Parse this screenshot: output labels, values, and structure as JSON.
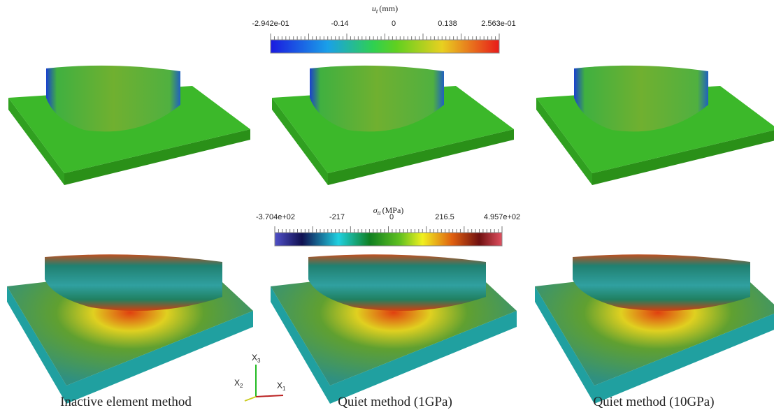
{
  "colorbars": [
    {
      "symbol": "u",
      "subscript": "t",
      "unit": "(mm)",
      "tick_labels": [
        "-2.942e-01",
        "-0.14",
        "0",
        "0.138",
        "2.563e-01"
      ]
    },
    {
      "symbol": "σ",
      "subscript": "tt",
      "unit": "(MPa)",
      "tick_labels": [
        "-3.704e+02",
        "-217",
        "0",
        "216.5",
        "4.957e+02"
      ]
    }
  ],
  "captions": [
    "Inactive element method",
    "Quiet method (1GPa)",
    "Quiet method (10GPa)"
  ],
  "axes_triad": [
    {
      "letter": "X",
      "index": "3"
    },
    {
      "letter": "X",
      "index": "2"
    },
    {
      "letter": "X",
      "index": "1"
    }
  ]
}
